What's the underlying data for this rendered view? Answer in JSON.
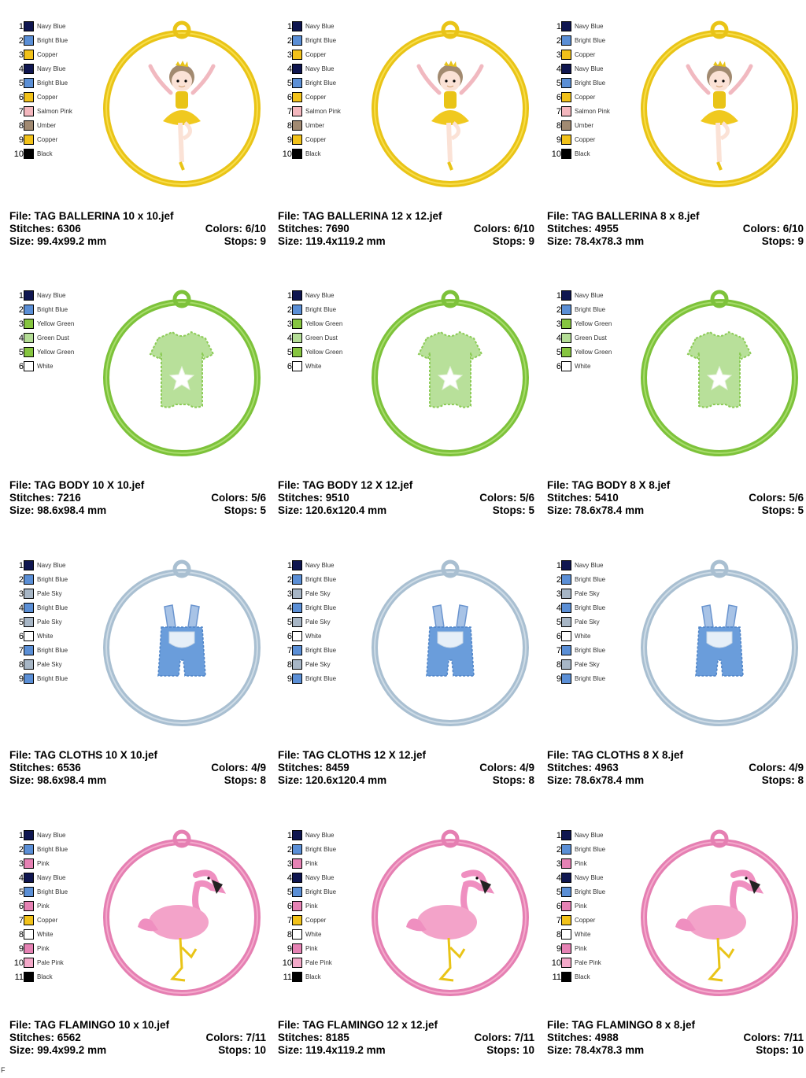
{
  "colors": {
    "Navy Blue": "#0f1650",
    "Bright Blue": "#5b8fd6",
    "Copper": "#f2c21a",
    "Salmon Pink": "#f4b7be",
    "Umber": "#a18a72",
    "Black": "#000000",
    "Yellow Green": "#86c53f",
    "Green Dust": "#b4dd96",
    "White": "#ffffff",
    "Pale Sky": "#a7b6c6",
    "Pink": "#e682b4",
    "Pale Pink": "#f4a9c9"
  },
  "designs": [
    {
      "kind": "ballerina",
      "palette": [
        "Navy Blue",
        "Bright Blue",
        "Copper",
        "Navy Blue",
        "Bright Blue",
        "Copper",
        "Salmon Pink",
        "Umber",
        "Copper",
        "Black"
      ],
      "variants": [
        {
          "file": "File: TAG BALLERINA 10 x 10.jef",
          "stitches": "Stitches: 6306",
          "colors": "Colors: 6/10",
          "size": "Size: 99.4x99.2 mm",
          "stops": "Stops: 9"
        },
        {
          "file": "File: TAG BALLERINA 12 x 12.jef",
          "stitches": "Stitches: 7690",
          "colors": "Colors: 6/10",
          "size": "Size: 119.4x119.2 mm",
          "stops": "Stops: 9"
        },
        {
          "file": "File: TAG BALLERINA 8 x 8.jef",
          "stitches": "Stitches: 4955",
          "colors": "Colors: 6/10",
          "size": "Size: 78.4x78.3 mm",
          "stops": "Stops: 9"
        }
      ]
    },
    {
      "kind": "body",
      "palette": [
        "Navy Blue",
        "Bright Blue",
        "Yellow Green",
        "Green Dust",
        "Yellow Green",
        "White"
      ],
      "variants": [
        {
          "file": "File: TAG BODY 10 X 10.jef",
          "stitches": "Stitches: 7216",
          "colors": "Colors: 5/6",
          "size": "Size: 98.6x98.4 mm",
          "stops": "Stops: 5"
        },
        {
          "file": "File: TAG BODY 12 X 12.jef",
          "stitches": "Stitches: 9510",
          "colors": "Colors: 5/6",
          "size": "Size: 120.6x120.4 mm",
          "stops": "Stops: 5"
        },
        {
          "file": "File: TAG BODY 8 X 8.jef",
          "stitches": "Stitches: 5410",
          "colors": "Colors: 5/6",
          "size": "Size: 78.6x78.4 mm",
          "stops": "Stops: 5"
        }
      ]
    },
    {
      "kind": "cloths",
      "palette": [
        "Navy Blue",
        "Bright Blue",
        "Pale Sky",
        "Bright Blue",
        "Pale Sky",
        "White",
        "Bright Blue",
        "Pale Sky",
        "Bright Blue"
      ],
      "variants": [
        {
          "file": "File: TAG CLOTHS 10 X 10.jef",
          "stitches": "Stitches: 6536",
          "colors": "Colors: 4/9",
          "size": "Size: 98.6x98.4 mm",
          "stops": "Stops: 8"
        },
        {
          "file": "File: TAG CLOTHS 12 X 12.jef",
          "stitches": "Stitches: 8459",
          "colors": "Colors: 4/9",
          "size": "Size: 120.6x120.4 mm",
          "stops": "Stops: 8"
        },
        {
          "file": "File: TAG CLOTHS 8 X 8.jef",
          "stitches": "Stitches: 4963",
          "colors": "Colors: 4/9",
          "size": "Size: 78.6x78.4 mm",
          "stops": "Stops: 8"
        }
      ]
    },
    {
      "kind": "flamingo",
      "palette": [
        "Navy Blue",
        "Bright Blue",
        "Pink",
        "Navy Blue",
        "Bright Blue",
        "Pink",
        "Copper",
        "White",
        "Pink",
        "Pale Pink",
        "Black"
      ],
      "variants": [
        {
          "file": "File: TAG FLAMINGO 10 x 10.jef",
          "stitches": "Stitches: 6562",
          "colors": "Colors: 7/11",
          "size": "Size: 99.4x99.2 mm",
          "stops": "Stops: 10"
        },
        {
          "file": "File: TAG FLAMINGO 12 x 12.jef",
          "stitches": "Stitches: 8185",
          "colors": "Colors: 7/11",
          "size": "Size: 119.4x119.2 mm",
          "stops": "Stops: 10"
        },
        {
          "file": "File: TAG FLAMINGO 8 x 8.jef",
          "stitches": "Stitches: 4988",
          "colors": "Colors: 7/11",
          "size": "Size: 78.4x78.3 mm",
          "stops": "Stops: 10"
        }
      ]
    }
  ],
  "footer_mark": "F"
}
